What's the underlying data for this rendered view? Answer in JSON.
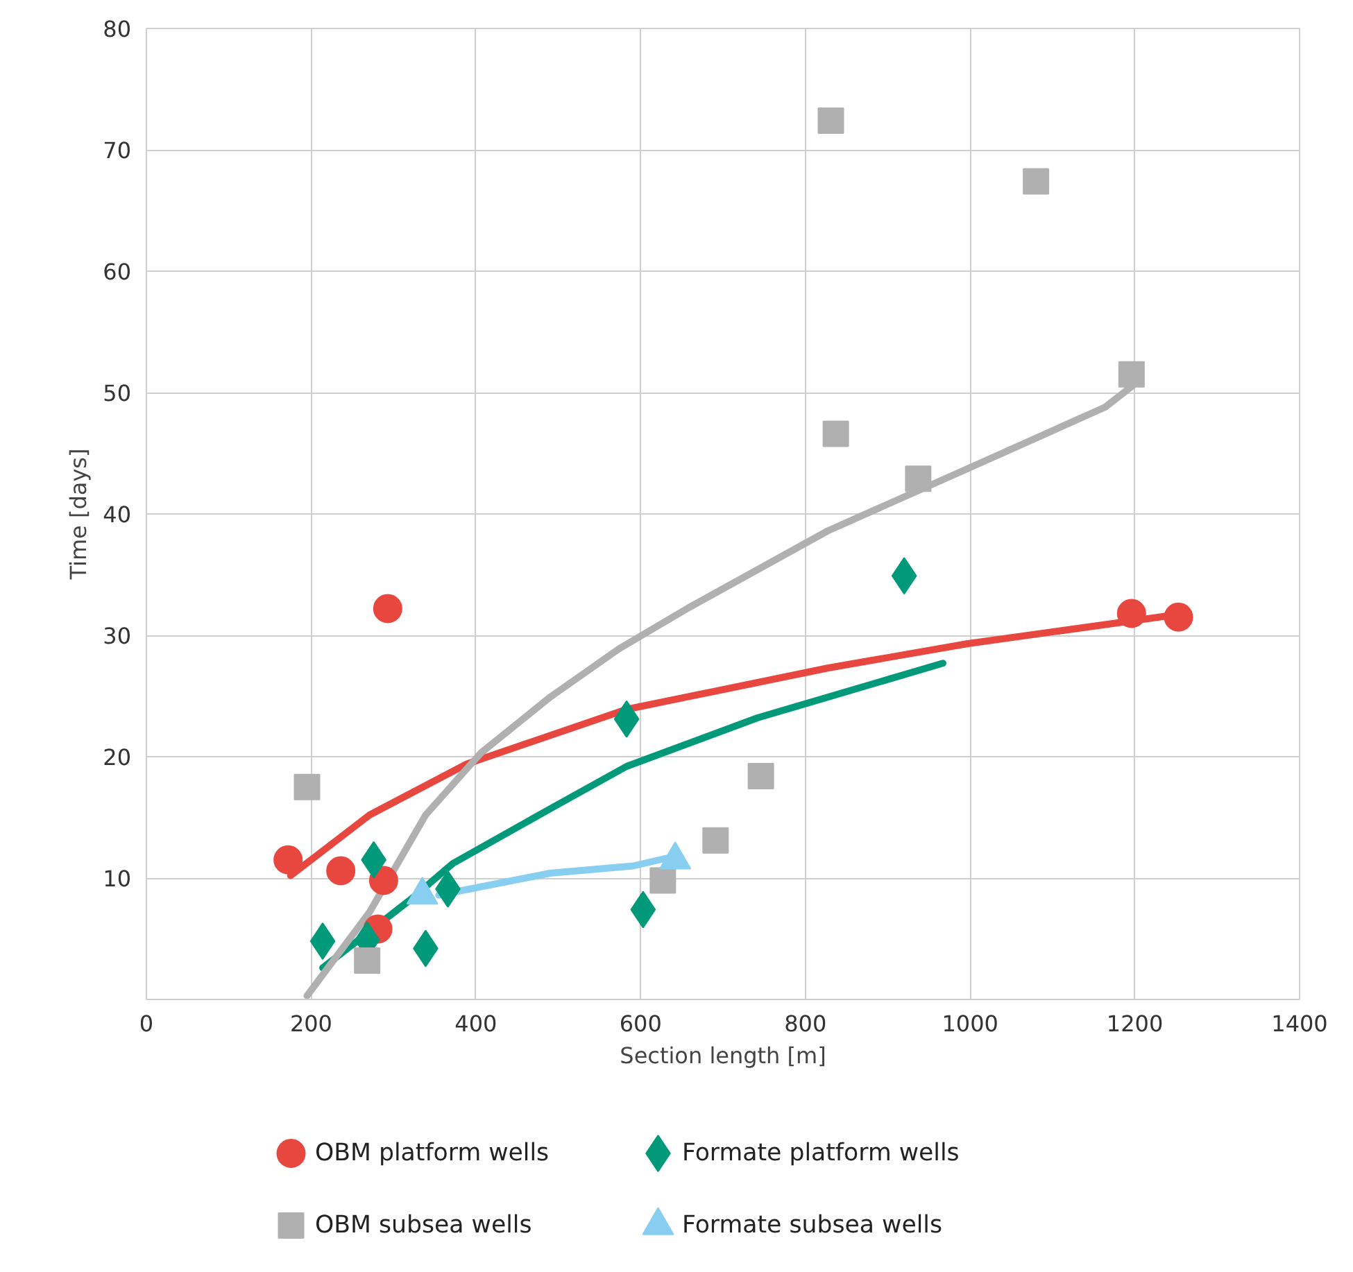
{
  "chart_data": {
    "type": "scatter",
    "xlabel": "Section length [m]",
    "ylabel": "Time [days]",
    "xlim": [
      0,
      1400
    ],
    "ylim": [
      0,
      80
    ],
    "xticks": [
      0,
      200,
      400,
      600,
      800,
      1000,
      1200,
      1400
    ],
    "yticks": [
      {
        "value": 0,
        "label": null
      },
      10,
      20,
      30,
      40,
      50,
      60,
      70,
      80
    ],
    "grid": true,
    "legend": "bottom",
    "series": [
      {
        "type": "line",
        "color": "#e8473f",
        "x": [
          175,
          271,
          389,
          583,
          827,
          996,
          1240
        ],
        "values": [
          10.2,
          15.2,
          19.4,
          23.9,
          27.3,
          29.3,
          31.6
        ]
      },
      {
        "type": "line",
        "color": "#009a7a",
        "x": [
          214,
          322,
          372,
          490,
          583,
          742,
          967
        ],
        "values": [
          2.6,
          8.3,
          11.2,
          15.7,
          19.2,
          23.2,
          27.7
        ]
      },
      {
        "type": "line",
        "color": "#b0b0b0",
        "x": [
          195,
          271,
          339,
          406,
          490,
          574,
          659,
          827,
          996,
          1164,
          1198
        ],
        "values": [
          0.3,
          7.2,
          15.2,
          20.3,
          24.9,
          28.9,
          32.3,
          38.6,
          43.7,
          48.8,
          50.6
        ]
      },
      {
        "type": "line",
        "color": "#87cef0",
        "x": [
          355,
          490,
          591,
          642
        ],
        "values": [
          8.6,
          10.4,
          11.0,
          11.8
        ]
      },
      {
        "type": "scatter",
        "name": "OBM platform wells",
        "marker": "circle",
        "color": "#e8473f",
        "x": [
          172,
          236,
          288,
          281,
          293,
          1196,
          1253
        ],
        "values": [
          11.5,
          10.6,
          9.8,
          5.8,
          32.2,
          31.8,
          31.5
        ]
      },
      {
        "type": "scatter",
        "name": "Formate platform wells",
        "marker": "diamond",
        "color": "#009a7a",
        "x": [
          214,
          276,
          268,
          339,
          366,
          583,
          603,
          920
        ],
        "values": [
          4.8,
          11.5,
          4.9,
          4.2,
          9.1,
          23.1,
          7.4,
          34.9
        ]
      },
      {
        "type": "scatter",
        "name": "OBM subsea wells",
        "marker": "square",
        "color": "#b0b0b0",
        "x": [
          195,
          268,
          627,
          691,
          746,
          831,
          837,
          937,
          1080,
          1196
        ],
        "values": [
          17.5,
          3.2,
          9.8,
          13.1,
          18.4,
          72.4,
          46.6,
          42.9,
          67.4,
          51.5
        ]
      },
      {
        "type": "scatter",
        "name": "Formate subsea wells",
        "marker": "triangle",
        "color": "#87cef0",
        "x": [
          335,
          642
        ],
        "values": [
          8.6,
          11.5
        ]
      }
    ]
  }
}
